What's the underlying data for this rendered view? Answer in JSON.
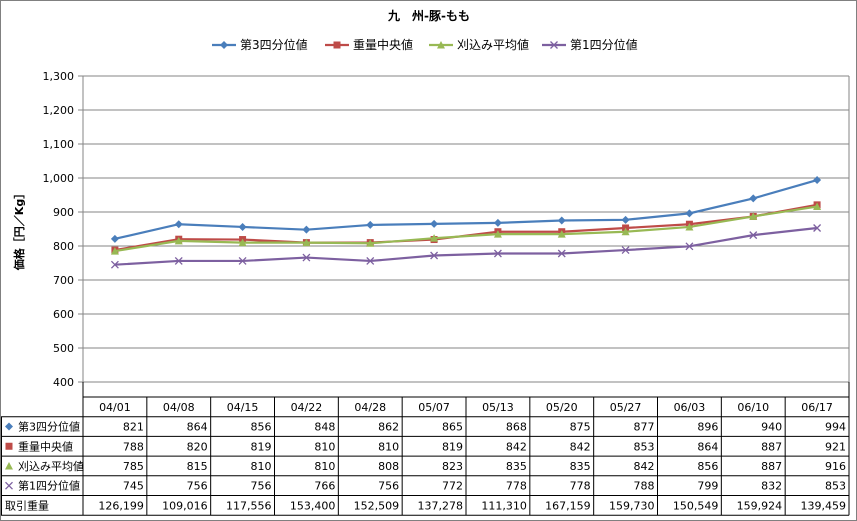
{
  "chart_data": {
    "type": "line",
    "title": "九　州-豚-もも",
    "ylabel": "価格［円／Kg］",
    "ylim": [
      400,
      1300
    ],
    "yticks": [
      "400",
      "500",
      "600",
      "700",
      "800",
      "900",
      "1,000",
      "1,100",
      "1,200",
      "1,300"
    ],
    "grid": true,
    "legend_position": "top",
    "categories": [
      "04/01",
      "04/08",
      "04/15",
      "04/22",
      "04/28",
      "05/07",
      "05/13",
      "05/20",
      "05/27",
      "06/03",
      "06/10",
      "06/17"
    ],
    "series": [
      {
        "name": "第3四分位値",
        "color": "#4a7ebb",
        "marker": "diamond",
        "values": [
          821,
          864,
          856,
          848,
          862,
          865,
          868,
          875,
          877,
          896,
          940,
          994
        ],
        "labels": [
          "821",
          "864",
          "856",
          "848",
          "862",
          "865",
          "868",
          "875",
          "877",
          "896",
          "940",
          "994"
        ]
      },
      {
        "name": "重量中央値",
        "color": "#be4b48",
        "marker": "square",
        "values": [
          788,
          820,
          819,
          810,
          810,
          819,
          842,
          842,
          853,
          864,
          887,
          921
        ],
        "labels": [
          "788",
          "820",
          "819",
          "810",
          "810",
          "819",
          "842",
          "842",
          "853",
          "864",
          "887",
          "921"
        ]
      },
      {
        "name": "刈込み平均値",
        "color": "#98b954",
        "marker": "triangle",
        "values": [
          785,
          815,
          810,
          810,
          808,
          823,
          835,
          835,
          842,
          856,
          887,
          916
        ],
        "labels": [
          "785",
          "815",
          "810",
          "810",
          "808",
          "823",
          "835",
          "835",
          "842",
          "856",
          "887",
          "916"
        ]
      },
      {
        "name": "第1四分位値",
        "color": "#7d60a0",
        "marker": "x",
        "values": [
          745,
          756,
          756,
          766,
          756,
          772,
          778,
          778,
          788,
          799,
          832,
          853
        ],
        "labels": [
          "745",
          "756",
          "756",
          "766",
          "756",
          "772",
          "778",
          "778",
          "788",
          "799",
          "832",
          "853"
        ]
      }
    ],
    "table_extra_row": {
      "name": "取引重量",
      "labels": [
        "126,199",
        "109,016",
        "117,556",
        "153,400",
        "152,509",
        "137,278",
        "111,310",
        "167,159",
        "159,730",
        "150,549",
        "159,924",
        "139,459"
      ]
    }
  }
}
